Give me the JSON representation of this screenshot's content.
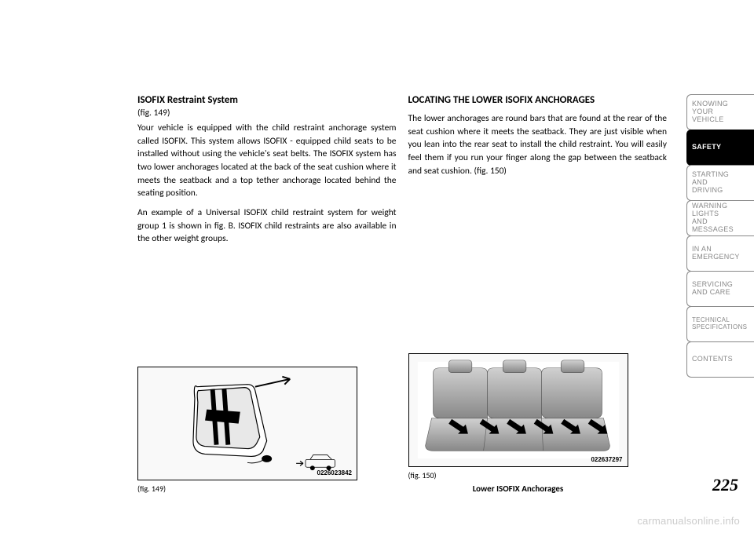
{
  "left": {
    "heading": "ISOFIX Restraint System",
    "figref": "(fig. 149)",
    "p1": "Your vehicle is equipped with the child restraint anchorage system called ISOFIX. This system allows ISOFIX - equipped child seats to be installed without using the vehicle's seat belts. The ISOFIX system has two lower anchorages located at the back of the seat cushion where it meets the seatback and a top tether anchorage located behind the seating position.",
    "p2": "An example of a Universal ISOFIX child restraint system for weight group 1 is shown in fig. B. ISOFIX child restraints are also available in the other weight groups.",
    "fig_caption": "(fig. 149)",
    "fig_num": "0226023842"
  },
  "right": {
    "heading": "LOCATING THE LOWER ISOFIX ANCHORAGES",
    "p1": "The lower anchorages are round bars that are found at the rear of the seat cushion where it meets the seatback. They are just visible when you lean into the rear seat to install the child restraint. You will easily feel them if you run your finger along the gap between the seatback and seat cushion. (fig. 150)",
    "fig_caption": "(fig. 150)",
    "fig_bold_caption": "Lower ISOFIX Anchorages",
    "fig_num": "022637297"
  },
  "sidebar": {
    "items": [
      {
        "label": "KNOWING\nYOUR\nVEHICLE",
        "active": false
      },
      {
        "label": "SAFETY",
        "active": true
      },
      {
        "label": "STARTING\nAND\nDRIVING",
        "active": false
      },
      {
        "label": "WARNING\nLIGHTS\nAND\nMESSAGES",
        "active": false
      },
      {
        "label": "IN AN\nEMERGENCY",
        "active": false
      },
      {
        "label": "SERVICING\nAND CARE",
        "active": false
      },
      {
        "label": "TECHNICAL\nSPECIFICATIONS",
        "active": false
      },
      {
        "label": "CONTENTS",
        "active": false
      }
    ]
  },
  "page_num": "225",
  "watermark": "carmanualsonline.info"
}
